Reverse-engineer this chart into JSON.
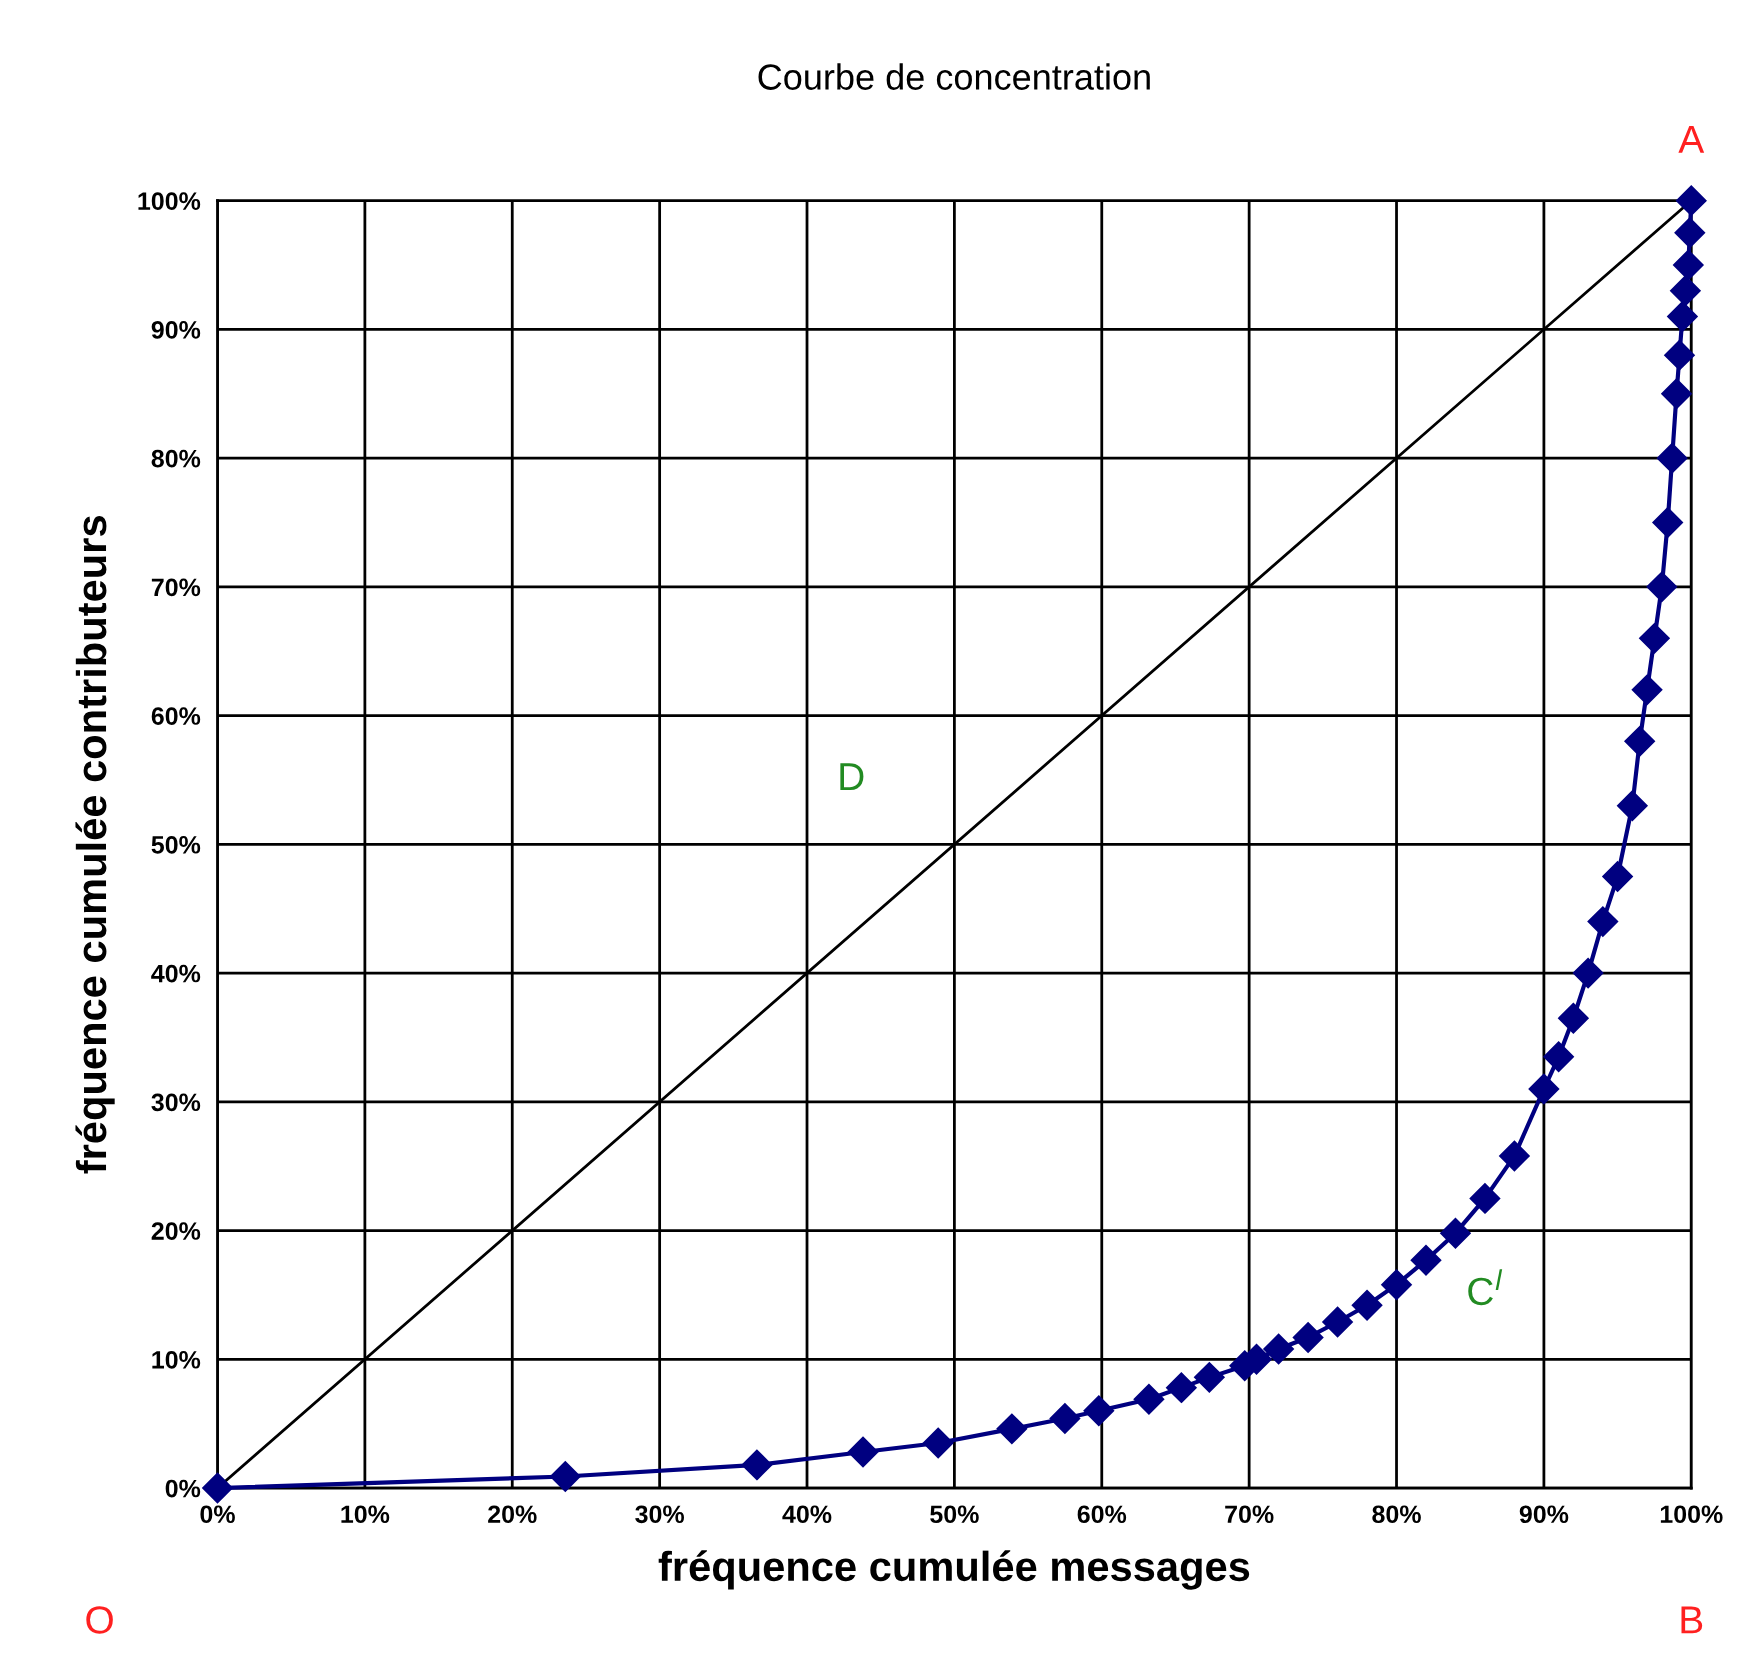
{
  "chart_data": {
    "type": "line",
    "title": "Courbe de concentration",
    "xlabel": "fréquence cumulée messages",
    "ylabel": "fréquence cumulée contributeurs",
    "xlim": [
      0,
      100
    ],
    "ylim": [
      0,
      100
    ],
    "xticks": [
      {
        "value": 0,
        "label": "0%"
      },
      {
        "value": 10,
        "label": "10%"
      },
      {
        "value": 20,
        "label": "20%"
      },
      {
        "value": 30,
        "label": "30%"
      },
      {
        "value": 40,
        "label": "40%"
      },
      {
        "value": 50,
        "label": "50%"
      },
      {
        "value": 60,
        "label": "60%"
      },
      {
        "value": 70,
        "label": "70%"
      },
      {
        "value": 80,
        "label": "80%"
      },
      {
        "value": 90,
        "label": "90%"
      },
      {
        "value": 100,
        "label": "100%"
      }
    ],
    "yticks": [
      {
        "value": 0,
        "label": "0%"
      },
      {
        "value": 10,
        "label": "10%"
      },
      {
        "value": 20,
        "label": "20%"
      },
      {
        "value": 30,
        "label": "30%"
      },
      {
        "value": 40,
        "label": "40%"
      },
      {
        "value": 50,
        "label": "50%"
      },
      {
        "value": 60,
        "label": "60%"
      },
      {
        "value": 70,
        "label": "70%"
      },
      {
        "value": 80,
        "label": "80%"
      },
      {
        "value": 90,
        "label": "90%"
      },
      {
        "value": 100,
        "label": "100%"
      }
    ],
    "grid": true,
    "legend": false,
    "series": [
      {
        "color": "#000000",
        "marker": "none",
        "x": [
          0,
          100
        ],
        "values": [
          0,
          100
        ]
      },
      {
        "color": "#000080",
        "marker": "diamond",
        "x": [
          0,
          23.6,
          36.6,
          43.8,
          48.9,
          53.9,
          57.5,
          59.8,
          63.2,
          65.4,
          67.3,
          69.7,
          70.5,
          72,
          74,
          76,
          78,
          80,
          82,
          84,
          86,
          88,
          90,
          91,
          92,
          93,
          94,
          95,
          96,
          96.5,
          97,
          97.5,
          98,
          98.4,
          98.7,
          99,
          99.2,
          99.4,
          99.6,
          99.8,
          99.9,
          100
        ],
        "values": [
          0,
          0.9,
          1.8,
          2.8,
          3.5,
          4.6,
          5.4,
          6.0,
          6.9,
          7.8,
          8.6,
          9.5,
          10,
          10.8,
          11.7,
          12.9,
          14.2,
          15.8,
          17.7,
          19.8,
          22.5,
          25.8,
          31,
          33.5,
          36.5,
          40,
          44,
          47.5,
          53,
          58,
          62,
          66,
          70,
          75,
          80,
          85,
          88,
          91,
          93,
          95,
          97.5,
          100
        ]
      }
    ],
    "annotations": [
      "A",
      "O",
      "B",
      "D",
      "C$^{l}$"
    ]
  }
}
